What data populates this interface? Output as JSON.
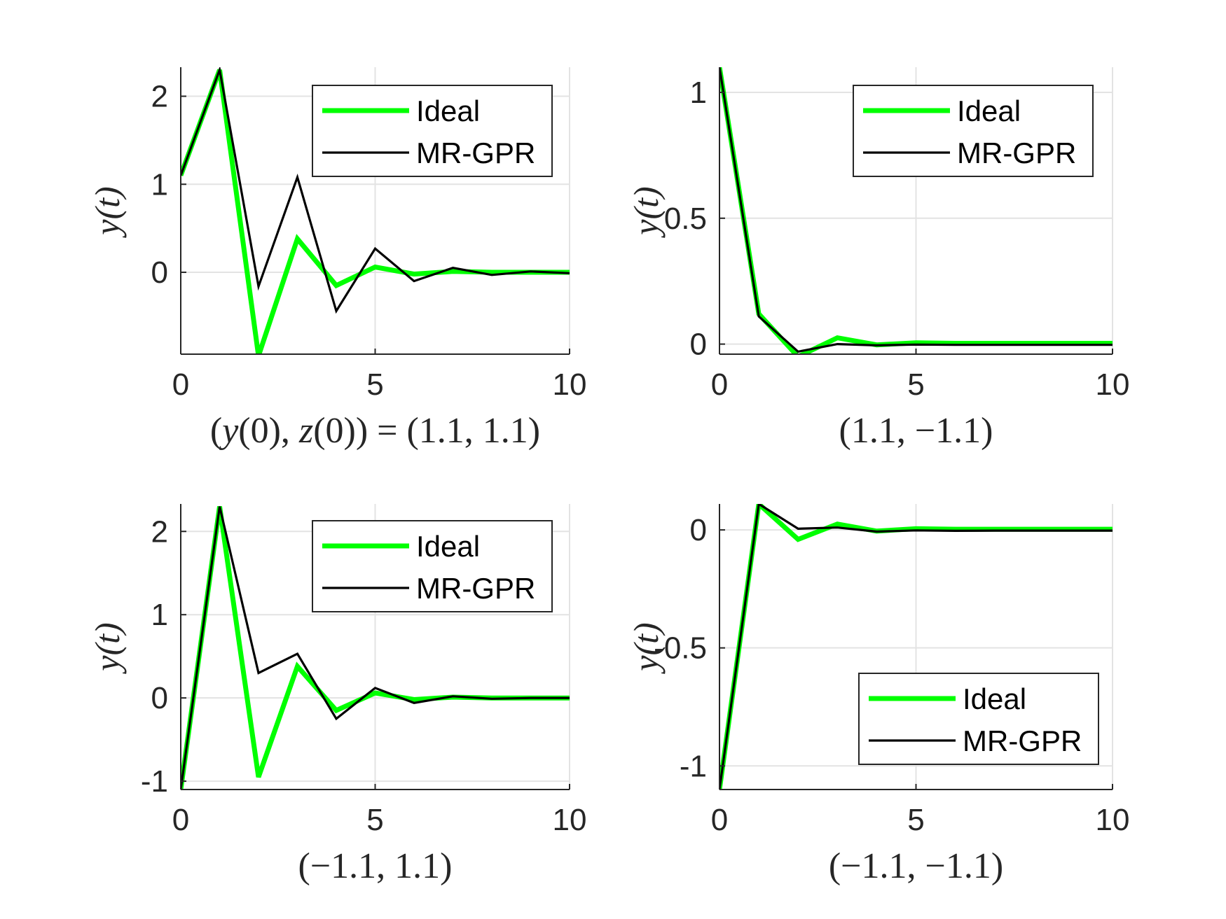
{
  "chart_data": [
    {
      "type": "line",
      "title": "",
      "xlabel": "(y(0), z(0)) = (1.1, 1.1)",
      "ylabel": "y(t)",
      "xlim": [
        0,
        10
      ],
      "ylim": [
        -0.93,
        2.33
      ],
      "xticks": [
        0,
        5,
        10
      ],
      "yticks": [
        0,
        1,
        2
      ],
      "xtick_labels": [
        "0",
        "5",
        "10"
      ],
      "ytick_labels": [
        "0",
        "1",
        "2"
      ],
      "grid": true,
      "legend_position": "top-right",
      "series": [
        {
          "name": "Ideal",
          "color": "#00ff00",
          "x": [
            0,
            1,
            2,
            3,
            4,
            5,
            6,
            7,
            8,
            9,
            10
          ],
          "y": [
            1.1,
            2.3,
            -0.95,
            0.38,
            -0.15,
            0.06,
            -0.02,
            0.01,
            0.0,
            0.0,
            0.0
          ]
        },
        {
          "name": "MR-GPR",
          "color": "#000000",
          "x": [
            0,
            1,
            2,
            3,
            4,
            5,
            6,
            7,
            8,
            9,
            10
          ],
          "y": [
            1.1,
            2.3,
            -0.16,
            1.08,
            -0.44,
            0.27,
            -0.1,
            0.05,
            -0.03,
            0.01,
            -0.01
          ]
        }
      ]
    },
    {
      "type": "line",
      "title": "",
      "xlabel": "(1.1, −1.1)",
      "ylabel": "y(t)",
      "xlim": [
        0,
        10
      ],
      "ylim": [
        -0.04,
        1.1
      ],
      "xticks": [
        0,
        5,
        10
      ],
      "yticks": [
        0,
        0.5,
        1
      ],
      "xtick_labels": [
        "0",
        "5",
        "10"
      ],
      "ytick_labels": [
        "0",
        "0.5",
        "1"
      ],
      "grid": true,
      "legend_position": "top-right",
      "series": [
        {
          "name": "Ideal",
          "color": "#00ff00",
          "x": [
            0,
            1,
            2,
            3,
            4,
            5,
            6,
            7,
            8,
            9,
            10
          ],
          "y": [
            1.1,
            0.12,
            -0.05,
            0.025,
            -0.003,
            0.005,
            0.003,
            0.003,
            0.003,
            0.003,
            0.003
          ]
        },
        {
          "name": "MR-GPR",
          "color": "#000000",
          "x": [
            0,
            1,
            2,
            3,
            4,
            5,
            6,
            7,
            8,
            9,
            10
          ],
          "y": [
            1.1,
            0.11,
            -0.03,
            0.0,
            -0.005,
            -0.002,
            -0.003,
            -0.003,
            -0.003,
            -0.003,
            -0.003
          ]
        }
      ]
    },
    {
      "type": "line",
      "title": "",
      "xlabel": "(−1.1, 1.1)",
      "ylabel": "y(t)",
      "xlim": [
        0,
        10
      ],
      "ylim": [
        -1.1,
        2.33
      ],
      "xticks": [
        0,
        5,
        10
      ],
      "yticks": [
        -1,
        0,
        1,
        2
      ],
      "xtick_labels": [
        "0",
        "5",
        "10"
      ],
      "ytick_labels": [
        "-1",
        "0",
        "1",
        "2"
      ],
      "grid": true,
      "legend_position": "top-right",
      "series": [
        {
          "name": "Ideal",
          "color": "#00ff00",
          "x": [
            0,
            1,
            2,
            3,
            4,
            5,
            6,
            7,
            8,
            9,
            10
          ],
          "y": [
            -1.1,
            2.3,
            -0.95,
            0.38,
            -0.15,
            0.06,
            -0.02,
            0.01,
            0.0,
            0.0,
            0.0
          ]
        },
        {
          "name": "MR-GPR",
          "color": "#000000",
          "x": [
            0,
            1,
            2,
            3,
            4,
            5,
            6,
            7,
            8,
            9,
            10
          ],
          "y": [
            -1.1,
            2.3,
            0.3,
            0.53,
            -0.25,
            0.12,
            -0.06,
            0.02,
            -0.01,
            0.0,
            0.0
          ]
        }
      ]
    },
    {
      "type": "line",
      "title": "",
      "xlabel": "(−1.1, −1.1)",
      "ylabel": "y(t)",
      "xlim": [
        0,
        10
      ],
      "ylim": [
        -1.1,
        0.11
      ],
      "xticks": [
        0,
        5,
        10
      ],
      "yticks": [
        -1,
        -0.5,
        0
      ],
      "xtick_labels": [
        "0",
        "5",
        "10"
      ],
      "ytick_labels": [
        "-1",
        "-0.5",
        "0"
      ],
      "grid": true,
      "legend_position": "bottom-right",
      "series": [
        {
          "name": "Ideal",
          "color": "#00ff00",
          "x": [
            0,
            1,
            2,
            3,
            4,
            5,
            6,
            7,
            8,
            9,
            10
          ],
          "y": [
            -1.1,
            0.11,
            -0.04,
            0.025,
            -0.005,
            0.005,
            0.003,
            0.003,
            0.003,
            0.003,
            0.003
          ]
        },
        {
          "name": "MR-GPR",
          "color": "#000000",
          "x": [
            0,
            1,
            2,
            3,
            4,
            5,
            6,
            7,
            8,
            9,
            10
          ],
          "y": [
            -1.1,
            0.11,
            0.005,
            0.01,
            -0.007,
            -0.002,
            -0.004,
            -0.003,
            -0.003,
            -0.003,
            -0.003
          ]
        }
      ]
    }
  ]
}
